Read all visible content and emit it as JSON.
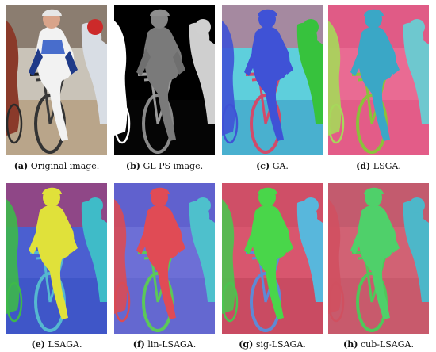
{
  "figure": {
    "panels": [
      {
        "tag": "(a)",
        "label": "Original image.",
        "kind": "photo"
      },
      {
        "tag": "(b)",
        "label": "GL PS image.",
        "kind": "depth"
      },
      {
        "tag": "(c)",
        "label": "GA.",
        "kind": "seg",
        "colors": {
          "bg": "#5ecfdc",
          "rider": "#3f52d6",
          "bike": "#d24a6a",
          "left": "#3f52d6",
          "right": "#37c23d",
          "track": "#49b0cf",
          "sky": "#e05070"
        }
      },
      {
        "tag": "(d)",
        "label": "LSGA.",
        "kind": "seg",
        "colors": {
          "bg": "#e96b93",
          "rider": "#3aa7c6",
          "bike": "#8ac23b",
          "left": "#a6d85a",
          "right": "#6ec8cf",
          "track": "#e35c88",
          "sky": "#d94f7b"
        }
      },
      {
        "tag": "(e)",
        "label": "LSAGA.",
        "kind": "seg",
        "colors": {
          "bg": "#4b5fd0",
          "rider": "#e0e13a",
          "bike": "#55b8d0",
          "left": "#3db84a",
          "right": "#3fbbc8",
          "track": "#3f56c8",
          "sky": "#c9334a"
        }
      },
      {
        "tag": "(f)",
        "label": "lin-LSAGA.",
        "kind": "seg",
        "colors": {
          "bg": "#6d6fd6",
          "rider": "#e04b55",
          "bike": "#5bc85a",
          "left": "#d94b55",
          "right": "#4ec0cc",
          "track": "#6468d0",
          "sky": "#5656c8"
        }
      },
      {
        "tag": "(g)",
        "label": "sig-LSAGA.",
        "kind": "seg",
        "colors": {
          "bg": "#d8566e",
          "rider": "#49d64a",
          "bike": "#5d8ad6",
          "left": "#4cc34f",
          "right": "#58b7dc",
          "track": "#c94b62",
          "sky": "#c94b62"
        }
      },
      {
        "tag": "(h)",
        "label": "cub-LSAGA.",
        "kind": "seg",
        "colors": {
          "bg": "#d16274",
          "rider": "#4fd06a",
          "bike": "#4fc75a",
          "left": "#d05060",
          "right": "#4db7c9",
          "track": "#c85a6c",
          "sky": "#b8566a"
        }
      }
    ]
  }
}
